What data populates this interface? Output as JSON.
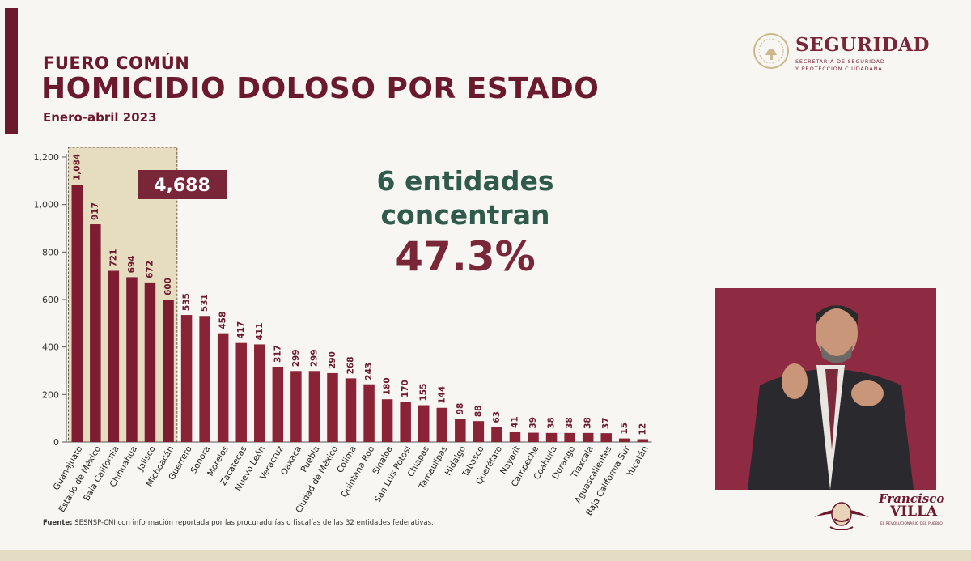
{
  "header": {
    "category": "FUERO COMÚN",
    "title": "HOMICIDIO DOLOSO POR ESTADO",
    "period": "Enero-abril 2023"
  },
  "logo": {
    "name": "SEGURIDAD",
    "line1": "SECRETARÍA DE SEGURIDAD",
    "line2": "Y PROTECCIÓN CIUDADANA"
  },
  "highlight": {
    "line1": "6 entidades",
    "line2": "concentran",
    "percent": "47.3%",
    "total_label": "4,688",
    "highlighted_count": 6
  },
  "brand": {
    "line1": "Francisco",
    "line2": "VILLA",
    "tagline": "EL REVOLUCIONARIO DEL PUEBLO"
  },
  "source": {
    "label": "Fuente:",
    "text": "SESNSP-CNI con información reportada por las procuradurías o fiscalías de las 32 entidades federativas."
  },
  "colors": {
    "bar": "#8b2337",
    "bar_highlight": "#7e1d31",
    "highlight_bg": "#e6dcc0",
    "title": "#6b1a2e",
    "green": "#2f5a4c"
  },
  "chart_data": {
    "type": "bar",
    "categories": [
      "Guanajuato",
      "Estado de México",
      "Baja California",
      "Chihuahua",
      "Jalisco",
      "Michoacán",
      "Guerrero",
      "Sonora",
      "Morelos",
      "Zacatecas",
      "Nuevo León",
      "Veracruz",
      "Oaxaca",
      "Puebla",
      "Ciudad de México",
      "Colima",
      "Quintana Roo",
      "Sinaloa",
      "San Luis Potosí",
      "Chiapas",
      "Tamaulipas",
      "Hidalgo",
      "Tabasco",
      "Querétaro",
      "Nayarit",
      "Campeche",
      "Coahuila",
      "Durango",
      "Tlaxcala",
      "Aguascalientes",
      "Baja California Sur",
      "Yucatán"
    ],
    "values": [
      1084,
      917,
      721,
      694,
      672,
      600,
      535,
      531,
      458,
      417,
      411,
      317,
      299,
      299,
      290,
      268,
      243,
      180,
      170,
      155,
      144,
      98,
      88,
      63,
      41,
      39,
      38,
      38,
      38,
      37,
      15,
      12
    ],
    "value_labels": [
      "1,084",
      "917",
      "721",
      "694",
      "672",
      "600",
      "535",
      "531",
      "458",
      "417",
      "411",
      "317",
      "299",
      "299",
      "290",
      "268",
      "243",
      "180",
      "170",
      "155",
      "144",
      "98",
      "88",
      "63",
      "41",
      "39",
      "38",
      "38",
      "38",
      "37",
      "15",
      "12"
    ],
    "yticks": [
      0,
      200,
      400,
      600,
      800,
      1000,
      1200
    ],
    "ytick_labels": [
      "0",
      "200",
      "400",
      "600",
      "800",
      "1,000",
      "1,200"
    ],
    "ylim": [
      0,
      1200
    ],
    "grid": false,
    "legend": "none"
  }
}
